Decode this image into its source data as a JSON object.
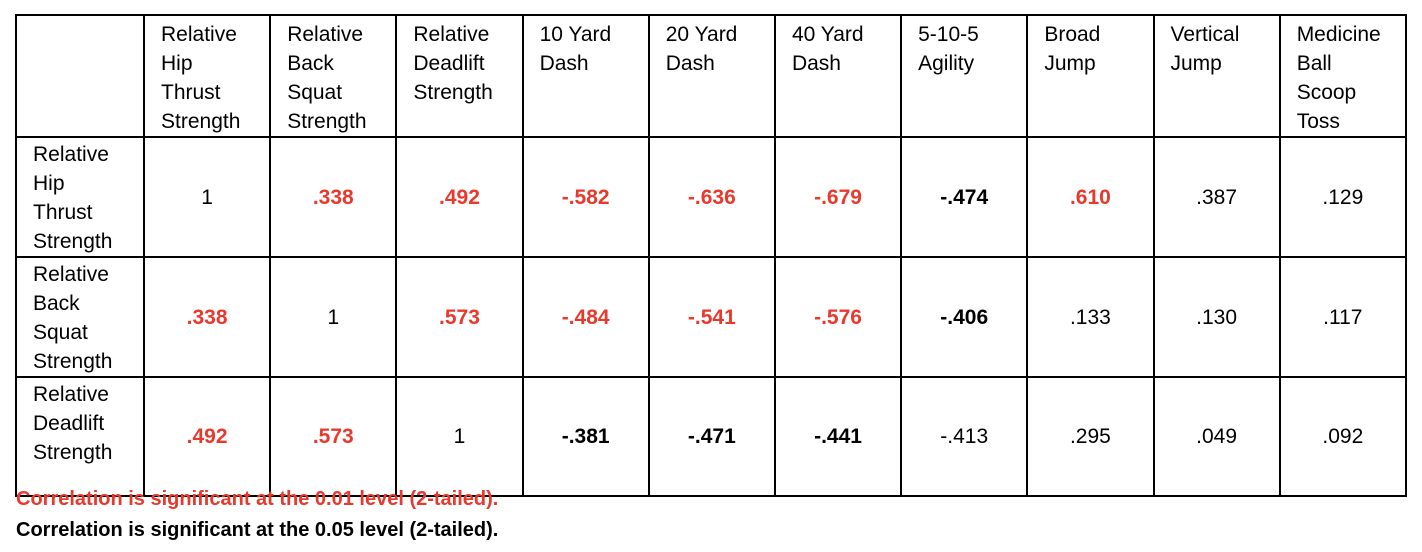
{
  "table": {
    "columns": [
      [
        "Relative",
        "Hip",
        "Thrust",
        "Strength"
      ],
      [
        "Relative",
        "Back",
        "Squat",
        "Strength"
      ],
      [
        "Relative",
        "Deadlift",
        "Strength"
      ],
      [
        "10 Yard",
        "Dash"
      ],
      [
        "20 Yard",
        "Dash"
      ],
      [
        "40 Yard",
        "Dash"
      ],
      [
        "5-10-5",
        "Agility"
      ],
      [
        "Broad",
        "Jump"
      ],
      [
        "Vertical",
        "Jump"
      ],
      [
        "Medicine",
        "Ball",
        "Scoop",
        "Toss"
      ]
    ],
    "rows": [
      {
        "label": [
          "Relative",
          "Hip",
          "Thrust",
          "Strength"
        ],
        "cells": [
          "1",
          ".338",
          ".492",
          "-.582",
          "-.636",
          "-.679",
          "-.474",
          ".610",
          ".387",
          ".129"
        ]
      },
      {
        "label": [
          "Relative",
          "Back",
          "Squat",
          "Strength"
        ],
        "cells": [
          ".338",
          "1",
          ".573",
          "-.484",
          "-.541",
          "-.576",
          "-.406",
          ".133",
          ".130",
          ".117"
        ]
      },
      {
        "label": [
          "Relative",
          "Deadlift",
          "Strength"
        ],
        "cells": [
          ".492",
          ".573",
          "1",
          "-.381",
          "-.471",
          "-.441",
          "-.413",
          ".295",
          ".049",
          ".092"
        ]
      }
    ]
  },
  "notes": [
    "Correlation is significant at the 0.01 level (2-tailed).",
    "Correlation is significant at the 0.05 level (2-tailed)."
  ]
}
